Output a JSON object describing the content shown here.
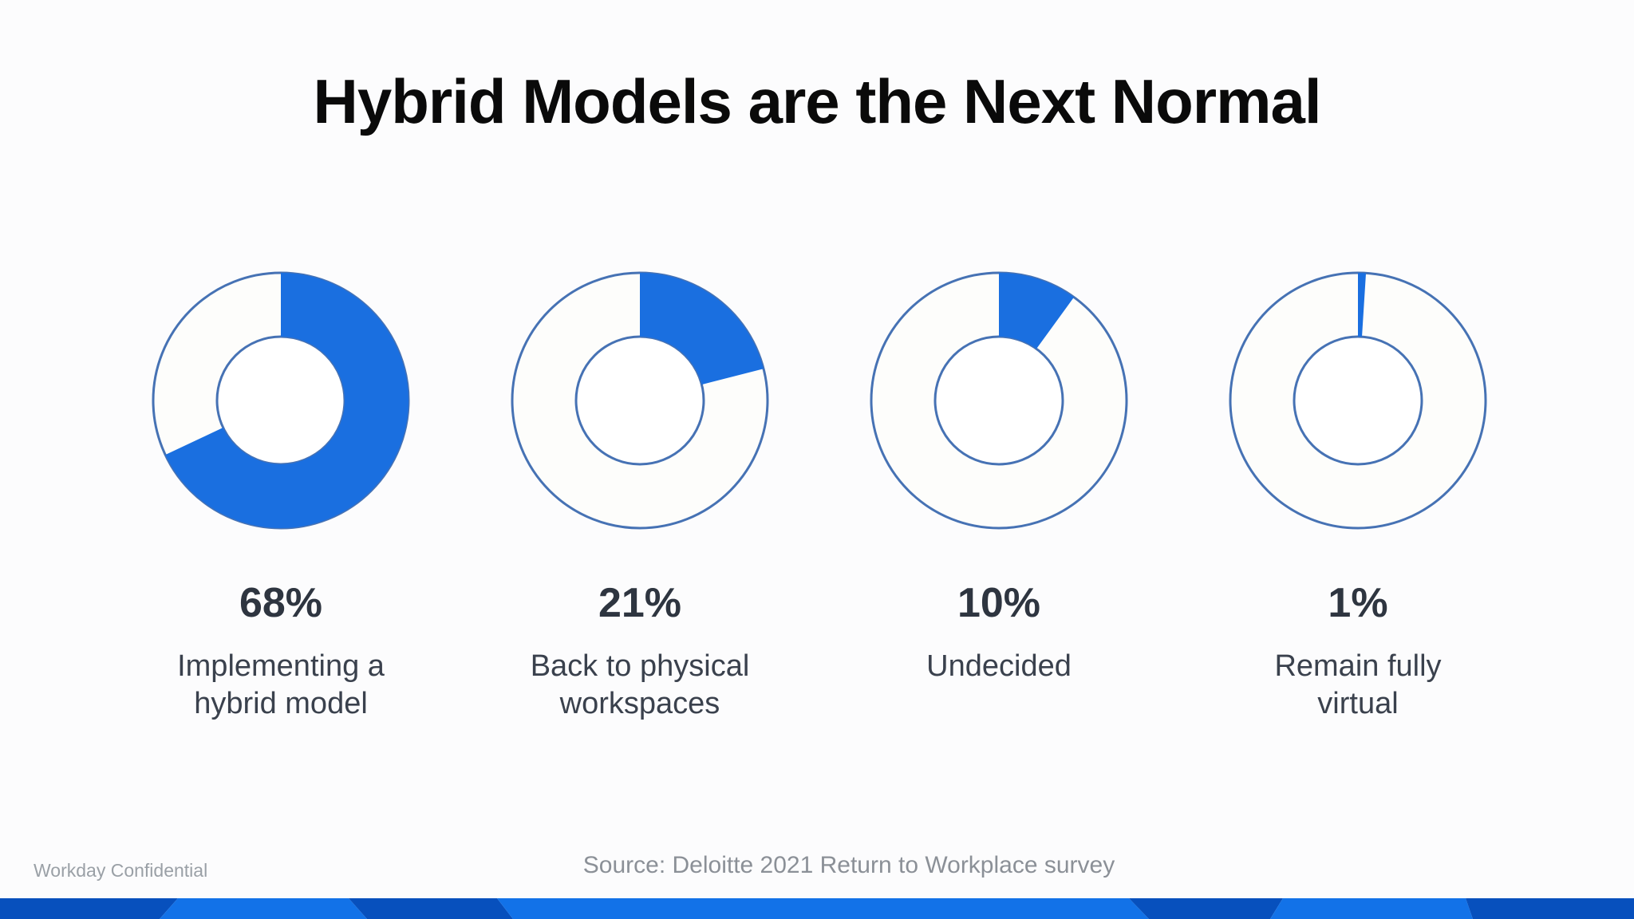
{
  "slide": {
    "title": "Hybrid Models are the Next Normal",
    "footer_left": "Workday Confidential",
    "source": "Source: Deloitte 2021 Return to Workplace survey"
  },
  "cards": [
    {
      "percent_label": "68%",
      "caption": "Implementing a\nhybrid model"
    },
    {
      "percent_label": "21%",
      "caption": "Back to physical\nworkspaces"
    },
    {
      "percent_label": "10%",
      "caption": "Undecided"
    },
    {
      "percent_label": "1%",
      "caption": "Remain fully\nvirtual"
    }
  ],
  "chart_data": {
    "type": "pie",
    "subtype": "donut",
    "title": "Hybrid Models are the Next Normal",
    "categories": [
      "Implementing a hybrid model",
      "Back to physical workspaces",
      "Undecided",
      "Remain fully virtual"
    ],
    "values": [
      68,
      21,
      10,
      1
    ],
    "unit": "%",
    "start_angle_deg": 0,
    "direction": "clockwise",
    "fill_color": "#1a6fe0",
    "ring_outline_color": "#4672b4",
    "ring_fill": "#fdfdfb",
    "hole_fill": "#ffffff",
    "source": "Deloitte 2021 Return to Workplace survey"
  },
  "colors": {
    "accent_blue": "#1a6fe0",
    "donut_outline": "#4672b4",
    "ring_fill": "#fdfdfb",
    "band_dark": "#0750bd",
    "band_bright": "#1272e8",
    "percent_text": "#2e3540",
    "caption_text": "#3a414d",
    "muted_text": "#9aa0a6",
    "source_text": "#8b9097",
    "title_text": "#0a0a0a",
    "background": "#fcfcfd"
  }
}
